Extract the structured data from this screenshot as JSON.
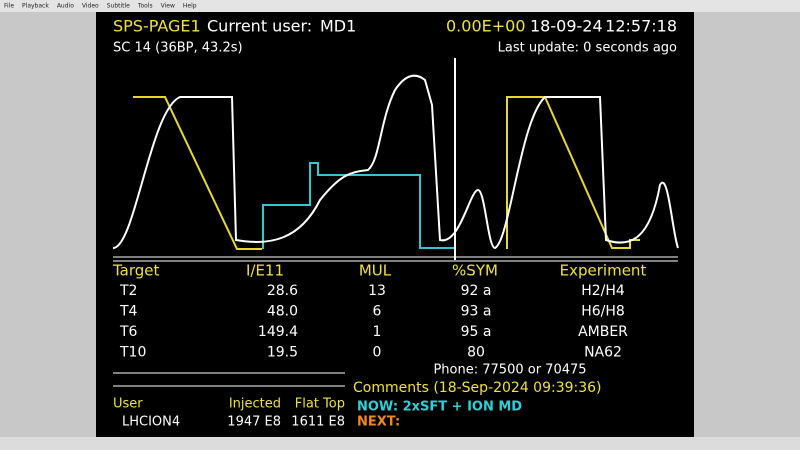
{
  "header": {
    "page": "SPS-PAGE1",
    "user_label": "Current user:",
    "user": "MD1",
    "intensity": "0.00E+00",
    "date": "18-09-24",
    "time": "12:57:18",
    "cycle": "SC 14 (36BP, 43.2s)",
    "last_update": "Last update: 0 seconds ago"
  },
  "menu": [
    "File",
    "Playback",
    "Audio",
    "Video",
    "Subtitle",
    "Tools",
    "View",
    "Help"
  ],
  "table": {
    "columns": [
      "Target",
      "I/E11",
      "MUL",
      "%SYM",
      "Experiment"
    ],
    "rows": [
      [
        "T2",
        "28.6",
        "13",
        "92 a",
        "H2/H4"
      ],
      [
        "T4",
        "48.0",
        "6",
        "93 a",
        "H6/H8"
      ],
      [
        "T6",
        "149.4",
        "1",
        "95 a",
        "AMBER"
      ],
      [
        "T10",
        "19.5",
        "0",
        "80",
        "NA62"
      ]
    ]
  },
  "phone": "Phone: 77500 or 70475",
  "comments": {
    "title": "Comments (18-Sep-2024 09:39:36)",
    "now": "NOW: 2xSFT + ION MD",
    "next": "NEXT:"
  },
  "user_block": {
    "labels": [
      "User",
      "Injected",
      "Flat Top"
    ],
    "values": [
      "LHCION4",
      "1947 E8",
      "1611 E8"
    ]
  }
}
